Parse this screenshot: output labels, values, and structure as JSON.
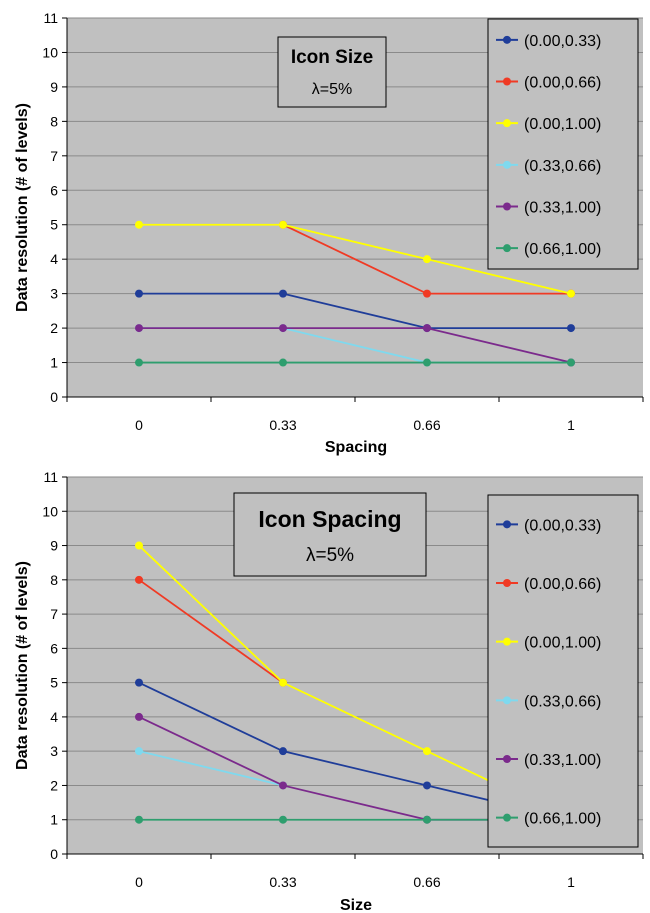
{
  "chart_data": [
    {
      "type": "line",
      "title": "Icon Size",
      "subtitle": "λ=5%",
      "xlabel": "Spacing",
      "ylabel": "Data resolution (# of levels)",
      "categories": [
        "0",
        "0.33",
        "0.66",
        "1"
      ],
      "ylim": [
        0,
        11
      ],
      "yticks": [
        "0",
        "1",
        "2",
        "3",
        "4",
        "5",
        "6",
        "7",
        "8",
        "9",
        "10",
        "11"
      ],
      "grid": true,
      "legend_position": "right",
      "series": [
        {
          "name": "(0.00,0.33)",
          "color": "#1f3d99",
          "values": [
            3,
            3,
            2,
            2
          ]
        },
        {
          "name": "(0.00,0.66)",
          "color": "#f03a24",
          "values": [
            null,
            5,
            3,
            3
          ]
        },
        {
          "name": "(0.00,1.00)",
          "color": "#ffff00",
          "values": [
            5,
            5,
            4,
            3
          ]
        },
        {
          "name": "(0.33,0.66)",
          "color": "#7fd9ee",
          "values": [
            2,
            2,
            1,
            1
          ]
        },
        {
          "name": "(0.33,1.00)",
          "color": "#7b2a8c",
          "values": [
            2,
            2,
            2,
            1
          ]
        },
        {
          "name": "(0.66,1.00)",
          "color": "#2e9e6e",
          "values": [
            1,
            1,
            1,
            1
          ]
        }
      ]
    },
    {
      "type": "line",
      "title": "Icon Spacing",
      "subtitle": "λ=5%",
      "xlabel": "Size",
      "ylabel": "Data resolution (# of levels)",
      "categories": [
        "0",
        "0.33",
        "0.66",
        "1"
      ],
      "ylim": [
        0,
        11
      ],
      "yticks": [
        "0",
        "1",
        "2",
        "3",
        "4",
        "5",
        "6",
        "7",
        "8",
        "9",
        "10",
        "11"
      ],
      "grid": true,
      "legend_position": "right",
      "series": [
        {
          "name": "(0.00,0.33)",
          "color": "#1f3d99",
          "values": [
            5,
            3,
            2,
            1
          ]
        },
        {
          "name": "(0.00,0.66)",
          "color": "#f03a24",
          "values": [
            8,
            5,
            null,
            null
          ]
        },
        {
          "name": "(0.00,1.00)",
          "color": "#ffff00",
          "values": [
            9,
            5,
            3,
            1
          ]
        },
        {
          "name": "(0.33,0.66)",
          "color": "#7fd9ee",
          "values": [
            3,
            2,
            null,
            null
          ]
        },
        {
          "name": "(0.33,1.00)",
          "color": "#7b2a8c",
          "values": [
            4,
            2,
            1,
            1
          ]
        },
        {
          "name": "(0.66,1.00)",
          "color": "#2e9e6e",
          "values": [
            1,
            1,
            1,
            1
          ]
        }
      ]
    }
  ]
}
